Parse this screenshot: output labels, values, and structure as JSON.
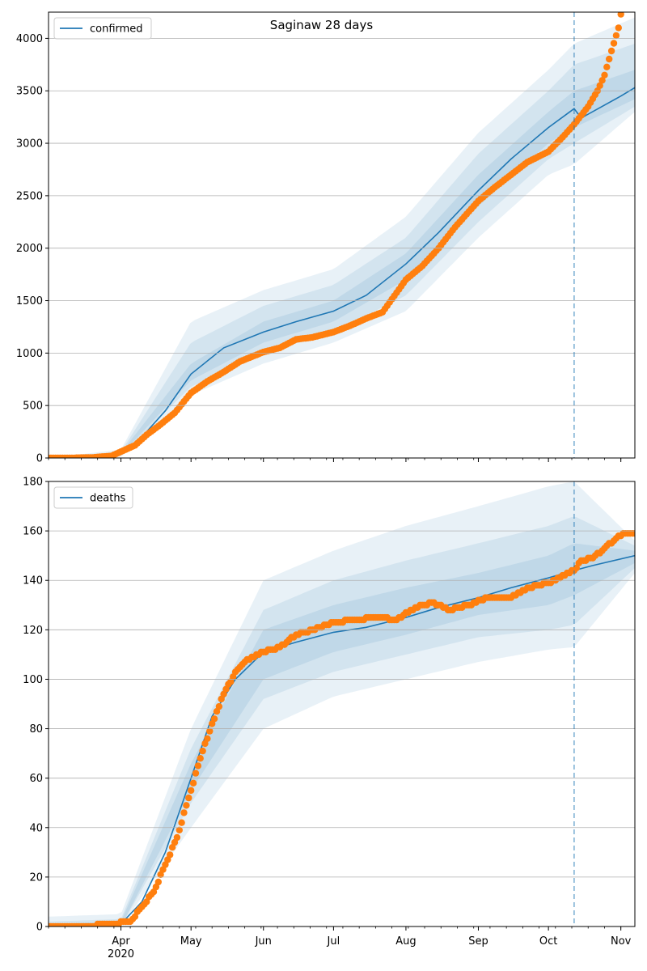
{
  "chart_data": [
    {
      "type": "line",
      "title": "Saginaw 28 days",
      "xlabel": "",
      "ylabel": "",
      "ylim": [
        0,
        4250
      ],
      "yticks": [
        0,
        500,
        1000,
        1500,
        2000,
        2500,
        3000,
        3500,
        4000
      ],
      "grid": "y",
      "legend": {
        "position": "top-left",
        "label": "confirmed"
      },
      "forecast_start": "2020-10-12",
      "model": {
        "name": "confirmed",
        "points": [
          [
            "2020-03-01",
            0
          ],
          [
            "2020-03-25",
            10
          ],
          [
            "2020-04-01",
            40
          ],
          [
            "2020-04-10",
            200
          ],
          [
            "2020-04-20",
            450
          ],
          [
            "2020-05-01",
            800
          ],
          [
            "2020-05-15",
            1050
          ],
          [
            "2020-06-01",
            1200
          ],
          [
            "2020-06-15",
            1300
          ],
          [
            "2020-07-01",
            1400
          ],
          [
            "2020-07-15",
            1550
          ],
          [
            "2020-08-01",
            1850
          ],
          [
            "2020-08-15",
            2150
          ],
          [
            "2020-09-01",
            2550
          ],
          [
            "2020-09-15",
            2850
          ],
          [
            "2020-10-01",
            3150
          ],
          [
            "2020-10-12",
            3330
          ],
          [
            "2020-10-15",
            3240
          ],
          [
            "2020-11-01",
            3450
          ],
          [
            "2020-11-07",
            3530
          ]
        ]
      },
      "bands": [
        {
          "level": "outer",
          "lower": [
            [
              "2020-03-01",
              0
            ],
            [
              "2020-04-01",
              10
            ],
            [
              "2020-05-01",
              600
            ],
            [
              "2020-06-01",
              900
            ],
            [
              "2020-07-01",
              1100
            ],
            [
              "2020-08-01",
              1400
            ],
            [
              "2020-09-01",
              2100
            ],
            [
              "2020-10-01",
              2700
            ],
            [
              "2020-10-12",
              2800
            ],
            [
              "2020-11-07",
              3300
            ]
          ],
          "upper": [
            [
              "2020-03-01",
              0
            ],
            [
              "2020-04-01",
              80
            ],
            [
              "2020-05-01",
              1300
            ],
            [
              "2020-06-01",
              1600
            ],
            [
              "2020-07-01",
              1800
            ],
            [
              "2020-08-01",
              2300
            ],
            [
              "2020-09-01",
              3100
            ],
            [
              "2020-10-01",
              3700
            ],
            [
              "2020-10-12",
              3950
            ],
            [
              "2020-11-07",
              4200
            ]
          ]
        },
        {
          "level": "middle",
          "lower": [
            [
              "2020-03-01",
              0
            ],
            [
              "2020-04-01",
              20
            ],
            [
              "2020-05-01",
              680
            ],
            [
              "2020-06-01",
              1000
            ],
            [
              "2020-07-01",
              1200
            ],
            [
              "2020-08-01",
              1550
            ],
            [
              "2020-09-01",
              2250
            ],
            [
              "2020-10-01",
              2850
            ],
            [
              "2020-10-12",
              3000
            ],
            [
              "2020-11-07",
              3350
            ]
          ],
          "upper": [
            [
              "2020-03-01",
              0
            ],
            [
              "2020-04-01",
              60
            ],
            [
              "2020-05-01",
              1100
            ],
            [
              "2020-06-01",
              1450
            ],
            [
              "2020-07-01",
              1650
            ],
            [
              "2020-08-01",
              2100
            ],
            [
              "2020-09-01",
              2900
            ],
            [
              "2020-10-01",
              3500
            ],
            [
              "2020-10-12",
              3750
            ],
            [
              "2020-11-07",
              3950
            ]
          ]
        },
        {
          "level": "inner",
          "lower": [
            [
              "2020-03-01",
              0
            ],
            [
              "2020-04-01",
              30
            ],
            [
              "2020-05-01",
              740
            ],
            [
              "2020-06-01",
              1100
            ],
            [
              "2020-07-01",
              1300
            ],
            [
              "2020-08-01",
              1700
            ],
            [
              "2020-09-01",
              2400
            ],
            [
              "2020-10-01",
              3000
            ],
            [
              "2020-10-12",
              3150
            ],
            [
              "2020-11-07",
              3420
            ]
          ],
          "upper": [
            [
              "2020-03-01",
              0
            ],
            [
              "2020-04-01",
              50
            ],
            [
              "2020-05-01",
              900
            ],
            [
              "2020-06-01",
              1300
            ],
            [
              "2020-07-01",
              1500
            ],
            [
              "2020-08-01",
              1950
            ],
            [
              "2020-09-01",
              2700
            ],
            [
              "2020-10-01",
              3300
            ],
            [
              "2020-10-12",
              3500
            ],
            [
              "2020-11-07",
              3700
            ]
          ]
        }
      ],
      "observed": {
        "name": "observed",
        "points": [
          [
            "2020-03-01",
            0
          ],
          [
            "2020-03-10",
            0
          ],
          [
            "2020-03-20",
            5
          ],
          [
            "2020-03-28",
            20
          ],
          [
            "2020-04-01",
            60
          ],
          [
            "2020-04-07",
            120
          ],
          [
            "2020-04-12",
            220
          ],
          [
            "2020-04-18",
            320
          ],
          [
            "2020-04-24",
            430
          ],
          [
            "2020-05-01",
            620
          ],
          [
            "2020-05-08",
            730
          ],
          [
            "2020-05-15",
            820
          ],
          [
            "2020-05-22",
            920
          ],
          [
            "2020-06-01",
            1010
          ],
          [
            "2020-06-08",
            1050
          ],
          [
            "2020-06-15",
            1130
          ],
          [
            "2020-06-22",
            1150
          ],
          [
            "2020-07-01",
            1200
          ],
          [
            "2020-07-08",
            1260
          ],
          [
            "2020-07-15",
            1330
          ],
          [
            "2020-07-22",
            1390
          ],
          [
            "2020-08-01",
            1700
          ],
          [
            "2020-08-08",
            1830
          ],
          [
            "2020-08-15",
            2000
          ],
          [
            "2020-08-22",
            2200
          ],
          [
            "2020-09-01",
            2450
          ],
          [
            "2020-09-08",
            2580
          ],
          [
            "2020-09-15",
            2700
          ],
          [
            "2020-09-22",
            2820
          ],
          [
            "2020-10-01",
            2920
          ],
          [
            "2020-10-08",
            3080
          ],
          [
            "2020-10-12",
            3180
          ],
          [
            "2020-10-18",
            3350
          ],
          [
            "2020-10-22",
            3500
          ],
          [
            "2020-10-25",
            3650
          ],
          [
            "2020-10-28",
            3880
          ],
          [
            "2020-10-31",
            4100
          ],
          [
            "2020-11-01",
            4230
          ]
        ]
      }
    },
    {
      "type": "line",
      "title": "",
      "xlabel": "",
      "ylabel": "",
      "ylim": [
        0,
        180
      ],
      "yticks": [
        0,
        20,
        40,
        60,
        80,
        100,
        120,
        140,
        160,
        180
      ],
      "grid": "y",
      "legend": {
        "position": "top-left",
        "label": "deaths"
      },
      "forecast_start": "2020-10-12",
      "xtick_labels": [
        "Apr\n2020",
        "May",
        "Jun",
        "Jul",
        "Aug",
        "Sep",
        "Oct",
        "Nov"
      ],
      "xtick_dates": [
        "2020-04-01",
        "2020-05-01",
        "2020-06-01",
        "2020-07-01",
        "2020-08-01",
        "2020-09-01",
        "2020-10-01",
        "2020-11-01"
      ],
      "model": {
        "name": "deaths",
        "points": [
          [
            "2020-03-01",
            0
          ],
          [
            "2020-04-01",
            1
          ],
          [
            "2020-04-10",
            10
          ],
          [
            "2020-04-20",
            30
          ],
          [
            "2020-05-01",
            60
          ],
          [
            "2020-05-10",
            85
          ],
          [
            "2020-05-20",
            100
          ],
          [
            "2020-06-01",
            111
          ],
          [
            "2020-06-15",
            115
          ],
          [
            "2020-07-01",
            119
          ],
          [
            "2020-07-15",
            121
          ],
          [
            "2020-08-01",
            125
          ],
          [
            "2020-08-15",
            129
          ],
          [
            "2020-09-01",
            133
          ],
          [
            "2020-09-15",
            137
          ],
          [
            "2020-10-01",
            141
          ],
          [
            "2020-10-12",
            144
          ],
          [
            "2020-10-20",
            146
          ],
          [
            "2020-11-07",
            150
          ]
        ]
      },
      "bands": [
        {
          "level": "outer",
          "lower": [
            [
              "2020-03-01",
              0
            ],
            [
              "2020-04-01",
              0
            ],
            [
              "2020-05-01",
              40
            ],
            [
              "2020-06-01",
              80
            ],
            [
              "2020-07-01",
              93
            ],
            [
              "2020-08-01",
              100
            ],
            [
              "2020-09-01",
              107
            ],
            [
              "2020-10-01",
              112
            ],
            [
              "2020-10-12",
              113
            ],
            [
              "2020-11-07",
              143
            ]
          ],
          "upper": [
            [
              "2020-03-01",
              4
            ],
            [
              "2020-04-01",
              5
            ],
            [
              "2020-05-01",
              80
            ],
            [
              "2020-06-01",
              140
            ],
            [
              "2020-07-01",
              152
            ],
            [
              "2020-08-01",
              162
            ],
            [
              "2020-09-01",
              170
            ],
            [
              "2020-10-01",
              178
            ],
            [
              "2020-10-12",
              180
            ],
            [
              "2020-11-07",
              156
            ]
          ]
        },
        {
          "level": "middle",
          "lower": [
            [
              "2020-03-01",
              0
            ],
            [
              "2020-04-01",
              0
            ],
            [
              "2020-05-01",
              50
            ],
            [
              "2020-06-01",
              92
            ],
            [
              "2020-07-01",
              103
            ],
            [
              "2020-08-01",
              110
            ],
            [
              "2020-09-01",
              117
            ],
            [
              "2020-10-01",
              120
            ],
            [
              "2020-10-12",
              122
            ],
            [
              "2020-11-07",
              145
            ]
          ],
          "upper": [
            [
              "2020-03-01",
              2
            ],
            [
              "2020-04-01",
              3
            ],
            [
              "2020-05-01",
              72
            ],
            [
              "2020-06-01",
              128
            ],
            [
              "2020-07-01",
              140
            ],
            [
              "2020-08-01",
              148
            ],
            [
              "2020-09-01",
              155
            ],
            [
              "2020-10-01",
              162
            ],
            [
              "2020-10-12",
              166
            ],
            [
              "2020-11-07",
              154
            ]
          ]
        },
        {
          "level": "inner",
          "lower": [
            [
              "2020-03-01",
              0
            ],
            [
              "2020-04-01",
              0
            ],
            [
              "2020-05-01",
              55
            ],
            [
              "2020-06-01",
              100
            ],
            [
              "2020-07-01",
              111
            ],
            [
              "2020-08-01",
              118
            ],
            [
              "2020-09-01",
              126
            ],
            [
              "2020-10-01",
              130
            ],
            [
              "2020-10-12",
              134
            ],
            [
              "2020-11-07",
              147
            ]
          ],
          "upper": [
            [
              "2020-03-01",
              1
            ],
            [
              "2020-04-01",
              2
            ],
            [
              "2020-05-01",
              66
            ],
            [
              "2020-06-01",
              120
            ],
            [
              "2020-07-01",
              130
            ],
            [
              "2020-08-01",
              137
            ],
            [
              "2020-09-01",
              143
            ],
            [
              "2020-10-01",
              150
            ],
            [
              "2020-10-12",
              155
            ],
            [
              "2020-11-07",
              152
            ]
          ]
        }
      ],
      "observed": {
        "name": "observed",
        "points": [
          [
            "2020-03-01",
            0
          ],
          [
            "2020-03-15",
            0
          ],
          [
            "2020-03-28",
            1
          ],
          [
            "2020-04-05",
            2
          ],
          [
            "2020-04-10",
            8
          ],
          [
            "2020-04-15",
            14
          ],
          [
            "2020-04-20",
            25
          ],
          [
            "2020-04-25",
            36
          ],
          [
            "2020-05-01",
            55
          ],
          [
            "2020-05-05",
            68
          ],
          [
            "2020-05-10",
            82
          ],
          [
            "2020-05-15",
            94
          ],
          [
            "2020-05-20",
            103
          ],
          [
            "2020-05-25",
            108
          ],
          [
            "2020-06-01",
            111
          ],
          [
            "2020-06-08",
            113
          ],
          [
            "2020-06-15",
            118
          ],
          [
            "2020-06-22",
            120
          ],
          [
            "2020-07-01",
            123
          ],
          [
            "2020-07-10",
            124
          ],
          [
            "2020-07-20",
            125
          ],
          [
            "2020-07-28",
            124
          ],
          [
            "2020-08-05",
            129
          ],
          [
            "2020-08-12",
            131
          ],
          [
            "2020-08-20",
            128
          ],
          [
            "2020-08-28",
            130
          ],
          [
            "2020-09-05",
            133
          ],
          [
            "2020-09-15",
            133
          ],
          [
            "2020-09-22",
            137
          ],
          [
            "2020-10-01",
            139
          ],
          [
            "2020-10-08",
            142
          ],
          [
            "2020-10-12",
            144
          ],
          [
            "2020-10-15",
            148
          ],
          [
            "2020-10-20",
            149
          ],
          [
            "2020-10-25",
            153
          ],
          [
            "2020-10-30",
            157
          ],
          [
            "2020-11-03",
            159
          ],
          [
            "2020-11-07",
            159
          ]
        ]
      }
    }
  ],
  "colors": {
    "model": "#1f77b4",
    "observed": "#ff7f0e",
    "band": "#1f77b4",
    "grid": "#b0b0b0",
    "forecast_line": "#1f77b4"
  },
  "x_range": [
    "2020-03-01",
    "2020-11-07"
  ]
}
